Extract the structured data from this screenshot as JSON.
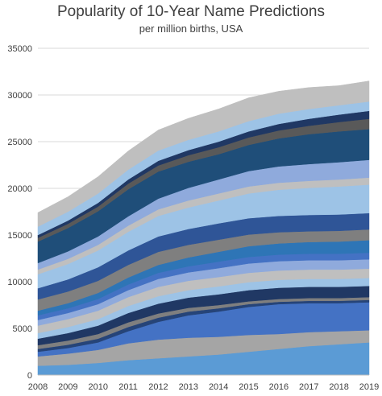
{
  "chart_data": {
    "type": "area",
    "stacked": true,
    "title": "Popularity of 10-Year Name Predictions",
    "subtitle": "per million births, USA",
    "xlabel": "",
    "ylabel": "",
    "x": [
      "2008",
      "2009",
      "2010",
      "2011",
      "2012",
      "2013",
      "2014",
      "2015",
      "2016",
      "2017",
      "2018",
      "2019"
    ],
    "ylim": [
      0,
      35000
    ],
    "yticks": [
      0,
      5000,
      10000,
      15000,
      20000,
      25000,
      30000,
      35000
    ],
    "ytick_labels": [
      "0",
      "5000",
      "10000",
      "15000",
      "20000",
      "25000",
      "30000",
      "35000"
    ],
    "grid": true,
    "legend": "none",
    "series": [
      {
        "color": "#5b9bd5",
        "values": [
          1000,
          1100,
          1300,
          1600,
          1800,
          2000,
          2200,
          2500,
          2800,
          3100,
          3300,
          3500
        ]
      },
      {
        "color": "#a5a5a5",
        "values": [
          1000,
          1200,
          1400,
          1800,
          2000,
          2000,
          1900,
          1800,
          1600,
          1500,
          1400,
          1300
        ]
      },
      {
        "color": "#4472c4",
        "values": [
          500,
          600,
          800,
          1300,
          1900,
          2400,
          2700,
          3000,
          3200,
          3100,
          3000,
          3000
        ]
      },
      {
        "color": "#264478",
        "values": [
          300,
          350,
          400,
          450,
          450,
          400,
          350,
          300,
          250,
          250,
          250,
          250
        ]
      },
      {
        "color": "#7f7f7f",
        "values": [
          400,
          450,
          500,
          500,
          450,
          400,
          350,
          300,
          300,
          300,
          300,
          300
        ]
      },
      {
        "color": "#203864",
        "values": [
          700,
          800,
          900,
          1000,
          1050,
          1100,
          1150,
          1200,
          1200,
          1200,
          1200,
          1200
        ]
      },
      {
        "color": "#9dc3e6",
        "values": [
          600,
          650,
          700,
          750,
          800,
          800,
          850,
          850,
          850,
          850,
          850,
          850
        ]
      },
      {
        "color": "#bfbfbf",
        "values": [
          800,
          850,
          900,
          950,
          1000,
          1000,
          1000,
          1000,
          1000,
          1000,
          1000,
          1000
        ]
      },
      {
        "color": "#8faadc",
        "values": [
          600,
          650,
          700,
          750,
          850,
          900,
          950,
          1000,
          1000,
          1000,
          1000,
          1000
        ]
      },
      {
        "color": "#4472c4",
        "values": [
          500,
          500,
          550,
          600,
          650,
          650,
          700,
          700,
          700,
          700,
          700,
          700
        ]
      },
      {
        "color": "#2e75b6",
        "values": [
          500,
          550,
          650,
          750,
          850,
          950,
          1050,
          1150,
          1200,
          1250,
          1300,
          1350
        ]
      },
      {
        "color": "#7f7f7f",
        "values": [
          1200,
          1250,
          1300,
          1350,
          1400,
          1350,
          1300,
          1250,
          1200,
          1150,
          1150,
          1150
        ]
      },
      {
        "color": "#2f5597",
        "values": [
          1200,
          1300,
          1450,
          1550,
          1650,
          1700,
          1750,
          1750,
          1750,
          1750,
          1750,
          1750
        ]
      },
      {
        "color": "#9dc3e6",
        "values": [
          1500,
          1650,
          1800,
          2000,
          2200,
          2300,
          2450,
          2650,
          2800,
          2900,
          3000,
          3050
        ]
      },
      {
        "color": "#bfbfbf",
        "values": [
          500,
          550,
          600,
          650,
          700,
          750,
          750,
          750,
          750,
          750,
          750,
          750
        ]
      },
      {
        "color": "#8faadc",
        "values": [
          700,
          800,
          900,
          1000,
          1150,
          1350,
          1500,
          1650,
          1750,
          1800,
          1850,
          1900
        ]
      },
      {
        "color": "#1f4e79",
        "values": [
          2300,
          2500,
          2700,
          2900,
          2900,
          2800,
          2700,
          2800,
          3000,
          3200,
          3300,
          3300
        ]
      },
      {
        "color": "#595959",
        "values": [
          400,
          450,
          500,
          600,
          650,
          700,
          750,
          800,
          850,
          900,
          1000,
          1100
        ]
      },
      {
        "color": "#203864",
        "values": [
          300,
          350,
          400,
          450,
          500,
          550,
          600,
          650,
          700,
          750,
          800,
          850
        ]
      },
      {
        "color": "#9dc3e6",
        "values": [
          900,
          950,
          1000,
          1050,
          1100,
          1100,
          1100,
          1100,
          1100,
          1050,
          1000,
          1000
        ]
      },
      {
        "color": "#bfbfbf",
        "values": [
          1500,
          1600,
          1800,
          2000,
          2200,
          2300,
          2400,
          2500,
          2400,
          2300,
          2100,
          2200
        ]
      }
    ]
  }
}
